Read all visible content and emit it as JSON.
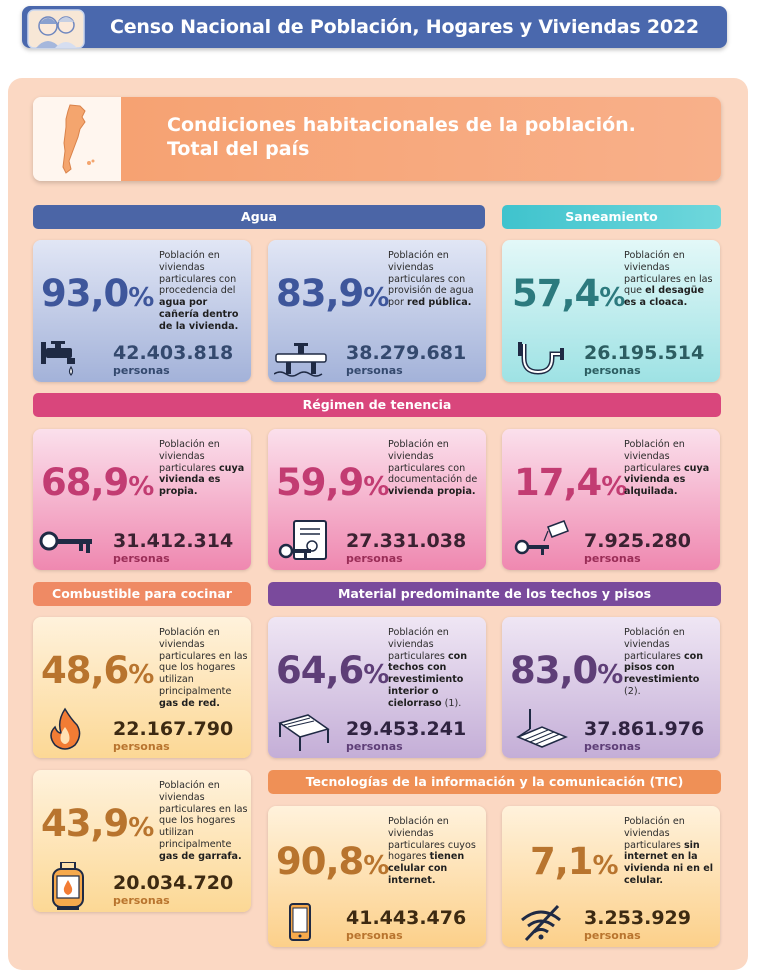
{
  "header": {
    "title": "Censo Nacional de Población, Hogares y Viviendas 2022"
  },
  "main": {
    "title_line1": "Condiciones habitacionales de la población.",
    "title_line2": "Total del país"
  },
  "sections": {
    "agua": "Agua",
    "saneamiento": "Saneamiento",
    "tenencia": "Régimen de tenencia",
    "combustible": "Combustible para cocinar",
    "material": "Material predominante de los techos y pisos",
    "tic": "Tecnologías de la información y la comunicación (TIC)"
  },
  "cards": {
    "agua_caneria": {
      "pct": "93,0",
      "sym": "%",
      "desc_normal": "Población en viviendas particulares con procedencia del ",
      "desc_bold": "agua por cañería dentro de la vivienda.",
      "desc_tail": "",
      "count": "42.403.818",
      "unit": "personas",
      "icon": "faucet-icon"
    },
    "agua_red": {
      "pct": "83,9",
      "sym": "%",
      "desc_normal": "Población en viviendas particulares con provisión de agua por ",
      "desc_bold": "red pública.",
      "desc_tail": "",
      "count": "38.279.681",
      "unit": "personas",
      "icon": "water-network-icon"
    },
    "cloaca": {
      "pct": "57,4",
      "sym": "%",
      "desc_normal": "Población en viviendas particulares en las que ",
      "desc_bold": "el desagüe es a cloaca.",
      "desc_tail": "",
      "count": "26.195.514",
      "unit": "personas",
      "icon": "pipe-icon"
    },
    "propia": {
      "pct": "68,9",
      "sym": "%",
      "desc_normal": "Población en viviendas particulares ",
      "desc_bold": "cuya vivienda es propia.",
      "desc_tail": "",
      "count": "31.412.314",
      "unit": "personas",
      "icon": "key-icon"
    },
    "documentacion": {
      "pct": "59,9",
      "sym": "%",
      "desc_normal": "Población en viviendas particulares con documentación de ",
      "desc_bold": "vivienda propia.",
      "desc_tail": "",
      "count": "27.331.038",
      "unit": "personas",
      "icon": "key-document-icon"
    },
    "alquilada": {
      "pct": "17,4",
      "sym": "%",
      "desc_normal": "Población en viviendas particulares ",
      "desc_bold": "cuya vivienda es alquilada.",
      "desc_tail": "",
      "count": "7.925.280",
      "unit": "personas",
      "icon": "key-tag-icon"
    },
    "gas_red": {
      "pct": "48,6",
      "sym": "%",
      "desc_normal": "Población en viviendas particulares en las que los hogares utilizan principalmente ",
      "desc_bold": "gas de red.",
      "desc_tail": "",
      "count": "22.167.790",
      "unit": "personas",
      "icon": "flame-icon"
    },
    "garrafa": {
      "pct": "43,9",
      "sym": "%",
      "desc_normal": "Población en viviendas particulares en las que los hogares utilizan principalmente ",
      "desc_bold": "gas de garrafa.",
      "desc_tail": "",
      "count": "20.034.720",
      "unit": "personas",
      "icon": "gas-cylinder-icon"
    },
    "techos": {
      "pct": "64,6",
      "sym": "%",
      "desc_normal": "Población en viviendas particulares ",
      "desc_bold": "con techos con revestimiento interior o cielorraso",
      "desc_tail": " (1).",
      "count": "29.453.241",
      "unit": "personas",
      "icon": "roof-icon"
    },
    "pisos": {
      "pct": "83,0",
      "sym": "%",
      "desc_normal": "Población en viviendas particulares ",
      "desc_bold": "con pisos con revestimiento",
      "desc_tail": " (2).",
      "count": "37.861.976",
      "unit": "personas",
      "icon": "floor-icon"
    },
    "celular": {
      "pct": "90,8",
      "sym": "%",
      "desc_normal": "Población en viviendas particulares cuyos hogares ",
      "desc_bold": "tienen celular con internet.",
      "desc_tail": "",
      "count": "41.443.476",
      "unit": "personas",
      "icon": "smartphone-icon"
    },
    "sin_internet": {
      "pct": "7,1",
      "sym": "%",
      "desc_normal": "Población en viviendas particulares ",
      "desc_bold": "sin internet en la vivienda ni en el celular.",
      "desc_tail": "",
      "count": "3.253.929",
      "unit": "personas",
      "icon": "no-wifi-icon"
    }
  },
  "colors": {
    "banner": "#4a68ad",
    "agua": "#4b65a6",
    "saneamiento": "#4ccad3",
    "tenencia": "#d9467c",
    "combustible": "#ef8a64",
    "material": "#7a4a9c",
    "tic": "#ef9056"
  }
}
